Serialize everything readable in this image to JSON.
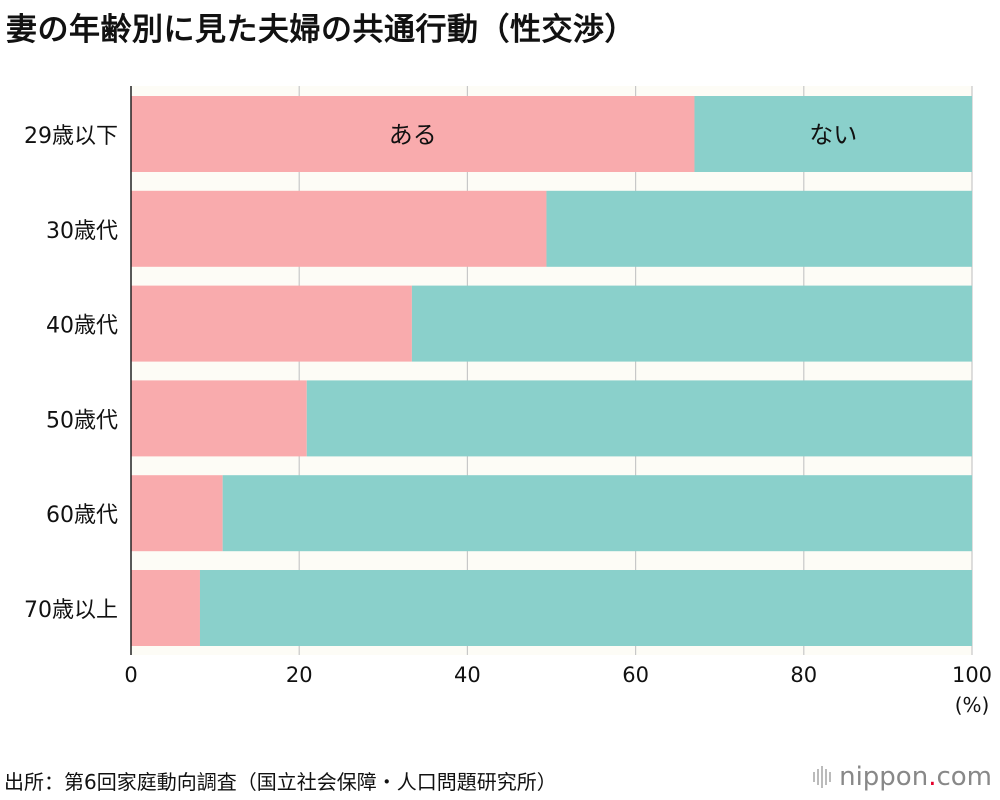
{
  "title": "妻の年齢別に見た夫婦の共通行動（性交渉）",
  "source": "出所：第6回家庭動向調査（国立社会保障・人口問題研究所）",
  "logo": {
    "name": "nippon",
    "dot": ".",
    "suffix": "com"
  },
  "chart_data": {
    "type": "bar",
    "orientation": "horizontal",
    "stacked": true,
    "title": "妻の年齢別に見た夫婦の共通行動（性交渉）",
    "categories": [
      "29歳以下",
      "30歳代",
      "40歳代",
      "50歳代",
      "60歳代",
      "70歳以上"
    ],
    "series": [
      {
        "name": "ある",
        "color": "#f9abad",
        "values": [
          67,
          49.4,
          33.4,
          20.9,
          10.9,
          8.2
        ]
      },
      {
        "name": "ない",
        "color": "#8ad0cb",
        "values": [
          33,
          50.6,
          66.6,
          79.1,
          89.1,
          91.8
        ]
      }
    ],
    "xlim": [
      0,
      100
    ],
    "xticks": [
      0,
      20,
      40,
      60,
      80,
      100
    ],
    "xunit": "(%)",
    "grid": true,
    "grid_color": "#c8c8c8",
    "background_color": "#fdfcf6",
    "legend": "inside first bar"
  }
}
